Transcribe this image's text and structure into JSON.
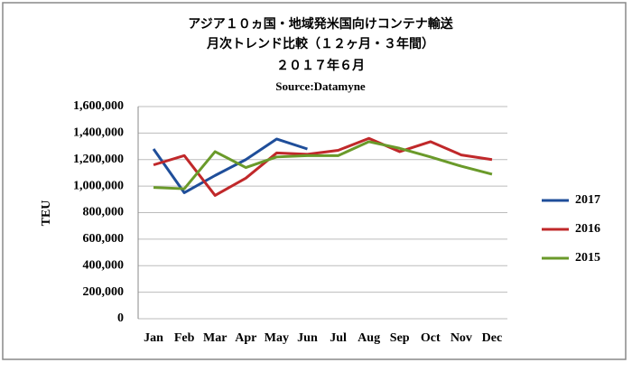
{
  "chart_data": {
    "type": "line",
    "title": "アジア１０ヵ国・地域発米国向けコンテナ輸送",
    "subtitle": [
      "月次トレンド比較（１２ヶ月・３年間）",
      "２０１７年６月",
      "Source:Datamyne"
    ],
    "y_label": "TEU",
    "categories": [
      "Jan",
      "Feb",
      "Mar",
      "Apr",
      "May",
      "Jun",
      "Jul",
      "Aug",
      "Sep",
      "Oct",
      "Nov",
      "Dec"
    ],
    "series": [
      {
        "name": "2017",
        "color": "#1f4e9a",
        "values": [
          1280000,
          950000,
          1080000,
          1200000,
          1355000,
          1280000,
          null,
          null,
          null,
          null,
          null,
          null
        ]
      },
      {
        "name": "2016",
        "color": "#c0282a",
        "values": [
          1160000,
          1230000,
          930000,
          1060000,
          1250000,
          1240000,
          1270000,
          1360000,
          1260000,
          1335000,
          1235000,
          1200000
        ]
      },
      {
        "name": "2015",
        "color": "#6a9a2a",
        "values": [
          990000,
          980000,
          1260000,
          1140000,
          1220000,
          1230000,
          1230000,
          1335000,
          1285000,
          1220000,
          1150000,
          1090000
        ]
      }
    ],
    "ylim": [
      0,
      1600000
    ],
    "yticks": [
      0,
      {
        "value": 200000,
        "label": "200,000"
      },
      {
        "value": 400000,
        "label": "400,000"
      },
      {
        "value": 600000,
        "label": "600,000"
      },
      {
        "value": 800000,
        "label": "800,000"
      },
      {
        "value": 1000000,
        "label": "1,000,000"
      },
      {
        "value": 1200000,
        "label": "1,200,000"
      },
      {
        "value": 1400000,
        "label": "1,400,000"
      },
      {
        "value": 1600000,
        "label": "1,600,000"
      }
    ],
    "grid": true,
    "legend": "right"
  }
}
